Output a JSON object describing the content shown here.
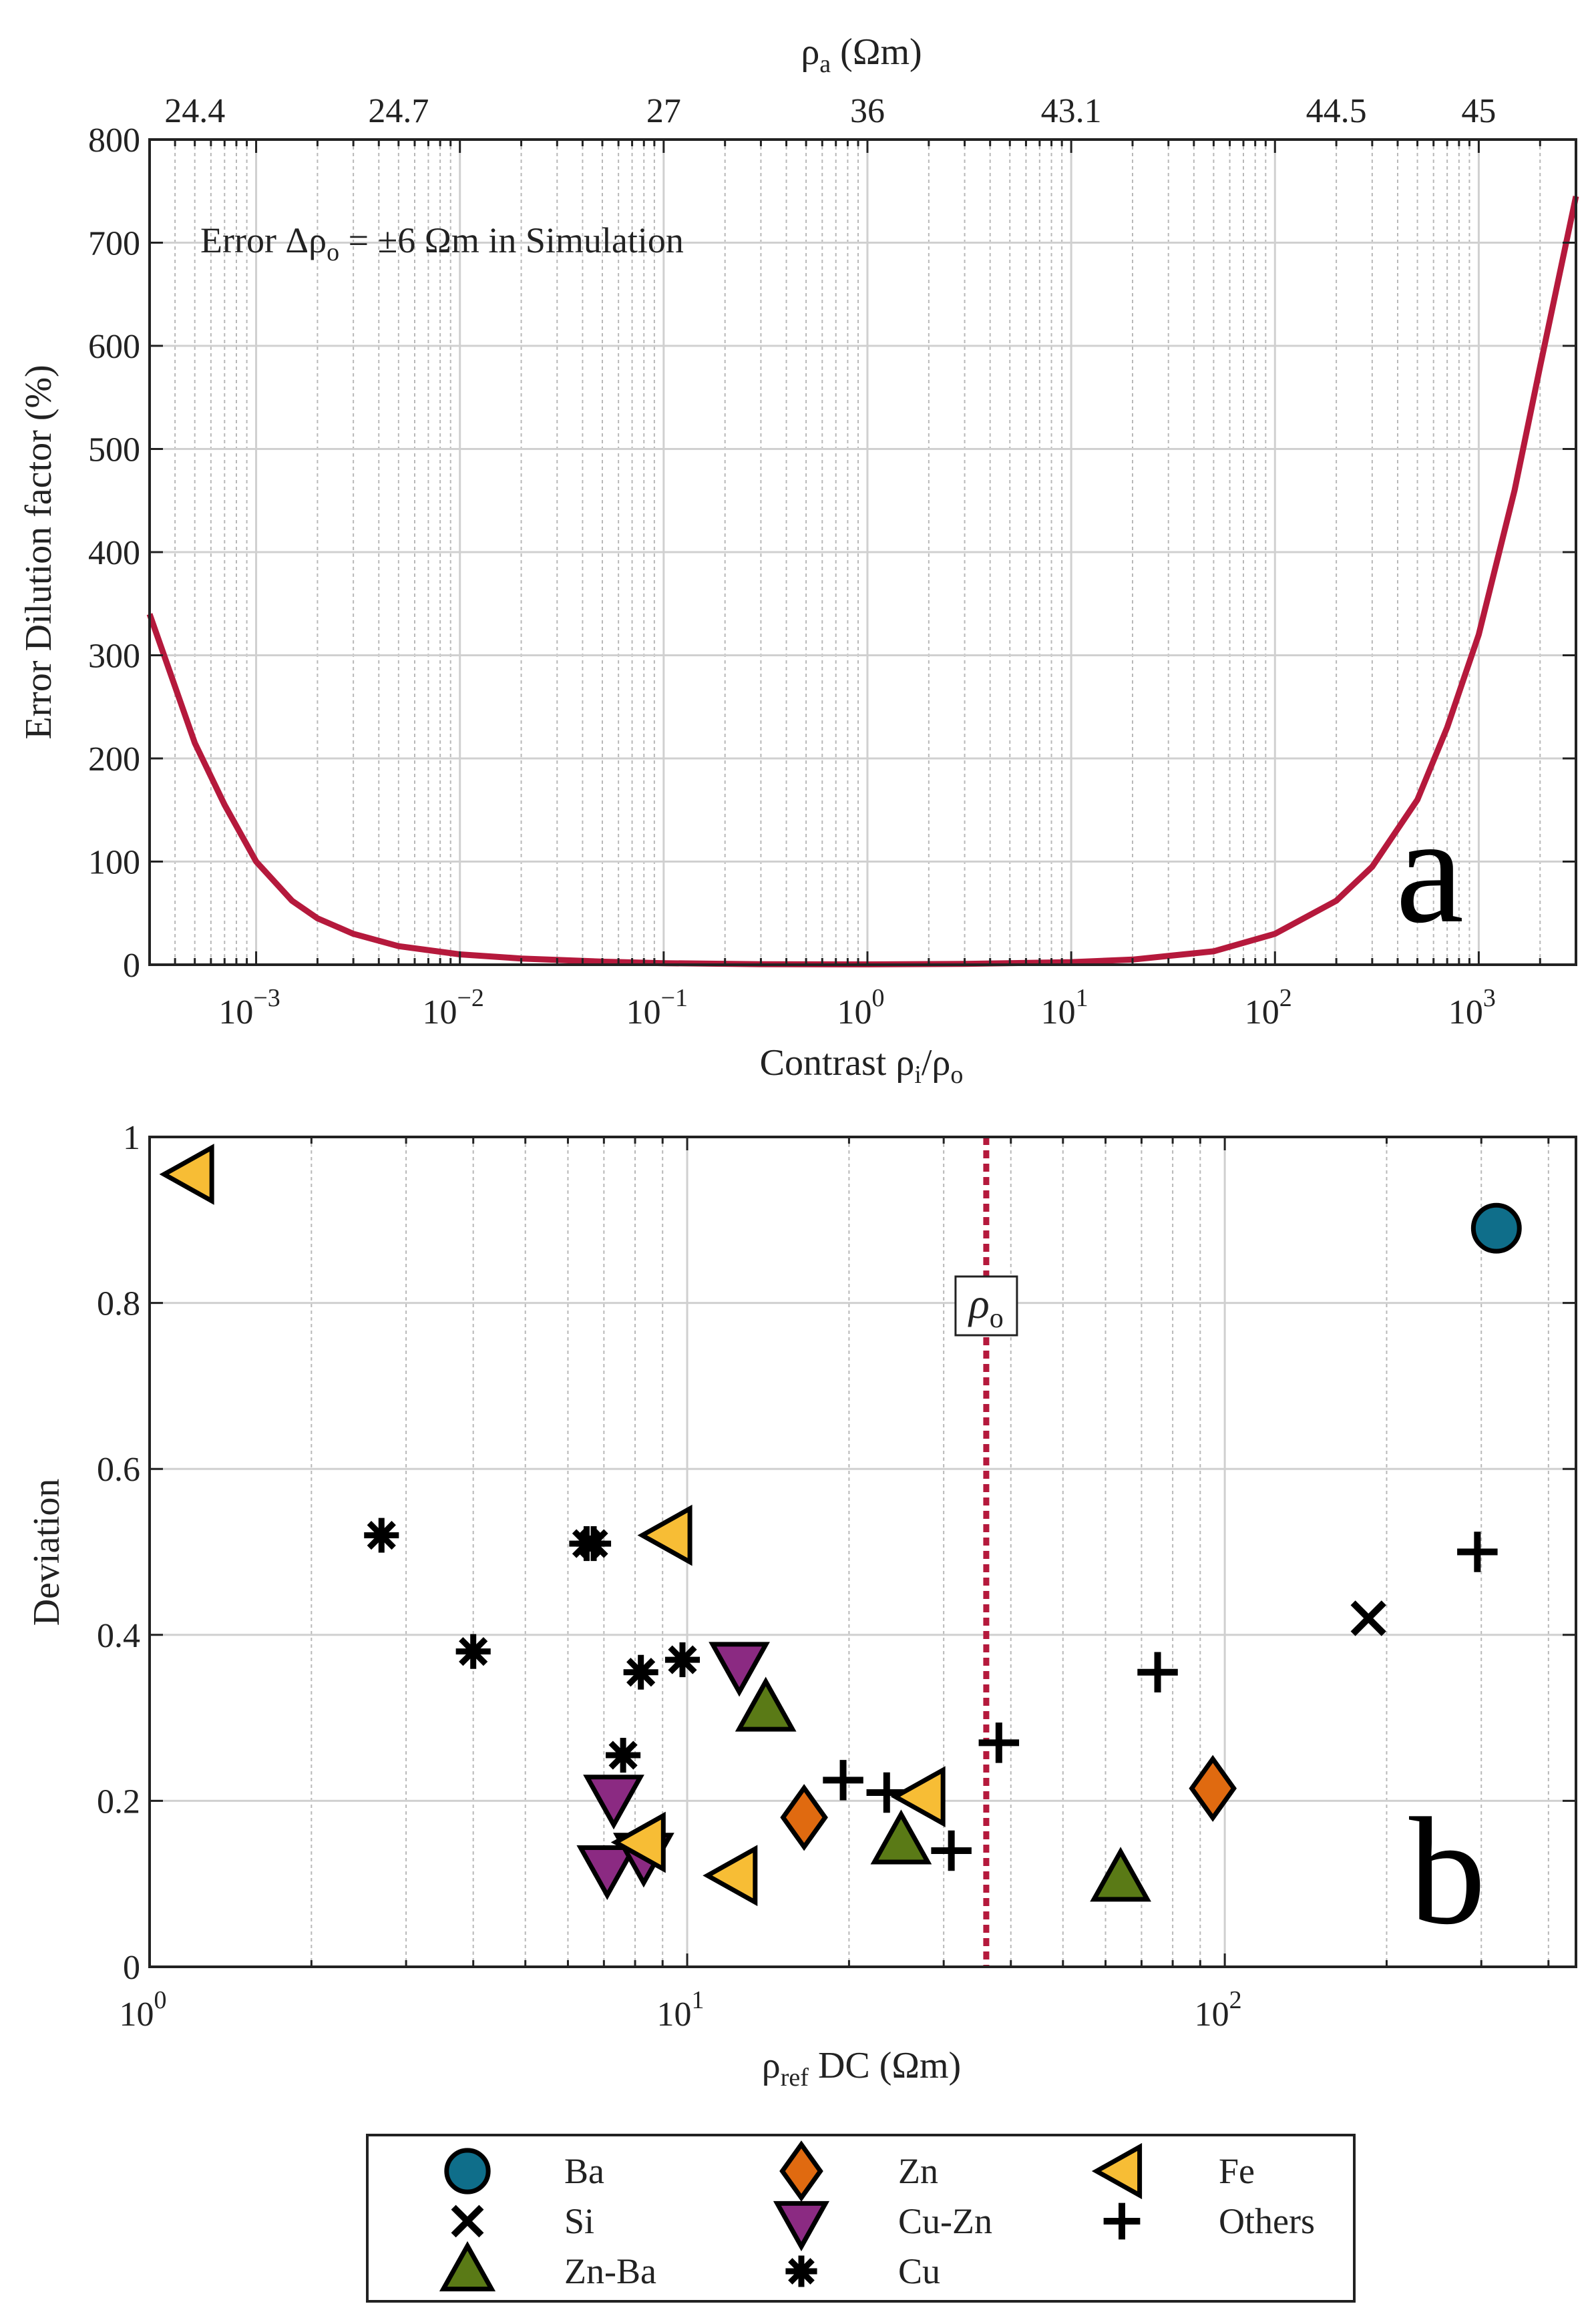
{
  "chart_data": [
    {
      "type": "line",
      "panel_letter": "a",
      "annotation": "Error Δρₒ = ±6 Ωm in Simulation",
      "annotation_parts": {
        "prefix": "Error Δρ",
        "sub": "o",
        "suffix": " = ±6 Ωm in Simulation"
      },
      "xlabel_parts": {
        "prefix": "Contrast ρ",
        "sub1": "i",
        "mid": "/ρ",
        "sub2": "o"
      },
      "ylabel": "Error Dilution factor (%)",
      "top_xlabel_parts": {
        "prefix": "ρ",
        "sub": "a",
        "suffix": " (Ωm)"
      },
      "xscale": "log",
      "xlim": [
        0.0003,
        3000
      ],
      "ylim": [
        0,
        800
      ],
      "yticks": [
        0,
        100,
        200,
        300,
        400,
        500,
        600,
        700,
        800
      ],
      "xticks": [
        {
          "value": 0.001,
          "base": "10",
          "exp": "−3"
        },
        {
          "value": 0.01,
          "base": "10",
          "exp": "−2"
        },
        {
          "value": 0.1,
          "base": "10",
          "exp": "−1"
        },
        {
          "value": 1,
          "base": "10",
          "exp": "0"
        },
        {
          "value": 10,
          "base": "10",
          "exp": "1"
        },
        {
          "value": 100,
          "base": "10",
          "exp": "2"
        },
        {
          "value": 1000,
          "base": "10",
          "exp": "3"
        }
      ],
      "top_ticks": [
        {
          "value": 0.0005,
          "label": "24.4"
        },
        {
          "value": 0.005,
          "label": "24.7"
        },
        {
          "value": 0.1,
          "label": "27"
        },
        {
          "value": 1,
          "label": "36"
        },
        {
          "value": 10,
          "label": "43.1"
        },
        {
          "value": 200,
          "label": "44.5"
        },
        {
          "value": 1000,
          "label": "45"
        }
      ],
      "series": [
        {
          "name": "Error dilution",
          "color": "#b5193c",
          "points": [
            [
              0.0003,
              340
            ],
            [
              0.0005,
              215
            ],
            [
              0.0007,
              155
            ],
            [
              0.001,
              100
            ],
            [
              0.0015,
              62
            ],
            [
              0.002,
              45
            ],
            [
              0.003,
              30
            ],
            [
              0.005,
              18
            ],
            [
              0.01,
              10
            ],
            [
              0.02,
              6
            ],
            [
              0.05,
              3
            ],
            [
              0.1,
              1.5
            ],
            [
              0.3,
              0.5
            ],
            [
              1,
              0.3
            ],
            [
              3,
              0.8
            ],
            [
              10,
              2.5
            ],
            [
              20,
              5
            ],
            [
              50,
              13
            ],
            [
              100,
              30
            ],
            [
              200,
              62
            ],
            [
              300,
              95
            ],
            [
              500,
              160
            ],
            [
              700,
              230
            ],
            [
              1000,
              320
            ],
            [
              1500,
              460
            ],
            [
              2000,
              580
            ],
            [
              3000,
              745
            ]
          ]
        }
      ]
    },
    {
      "type": "scatter",
      "panel_letter": "b",
      "ylabel": "Deviation",
      "xlabel_parts": {
        "prefix": "ρ",
        "sub": "ref",
        "suffix": " DC (Ωm)"
      },
      "xscale": "log",
      "xlim": [
        1,
        450
      ],
      "ylim": [
        0,
        1
      ],
      "yticks": [
        {
          "value": 0,
          "label": "0"
        },
        {
          "value": 0.2,
          "label": "0.2"
        },
        {
          "value": 0.4,
          "label": "0.4"
        },
        {
          "value": 0.6,
          "label": "0.6"
        },
        {
          "value": 0.8,
          "label": "0.8"
        },
        {
          "value": 1,
          "label": "1"
        }
      ],
      "xticks": [
        {
          "value": 1,
          "base": "10",
          "exp": "0"
        },
        {
          "value": 10,
          "base": "10",
          "exp": "1"
        },
        {
          "value": 100,
          "base": "10",
          "exp": "2"
        }
      ],
      "reference_line": {
        "x": 36,
        "label": "ρ",
        "label_sub": "o",
        "color": "#b5193c"
      },
      "series": [
        {
          "name": "Ba",
          "marker": "circle",
          "color": "#0f6e8a",
          "points": [
            [
              320,
              0.89
            ]
          ]
        },
        {
          "name": "Si",
          "marker": "x",
          "color": "#000000",
          "points": [
            [
              185,
              0.42
            ]
          ]
        },
        {
          "name": "Zn-Ba",
          "marker": "triangle-up",
          "color": "#5a7a16",
          "points": [
            [
              14,
              0.31
            ],
            [
              25,
              0.15
            ],
            [
              64,
              0.105
            ]
          ]
        },
        {
          "name": "Zn",
          "marker": "diamond",
          "color": "#e06a10",
          "points": [
            [
              16.5,
              0.18
            ],
            [
              95,
              0.215
            ]
          ]
        },
        {
          "name": "Cu-Zn",
          "marker": "triangle-down",
          "color": "#8b2a82",
          "points": [
            [
              12.5,
              0.365
            ],
            [
              7.3,
              0.205
            ],
            [
              7.1,
              0.12
            ],
            [
              8.3,
              0.135
            ]
          ]
        },
        {
          "name": "Cu",
          "marker": "asterisk",
          "color": "#000000",
          "points": [
            [
              2.7,
              0.52
            ],
            [
              4.0,
              0.38
            ],
            [
              6.5,
              0.51
            ],
            [
              6.7,
              0.51
            ],
            [
              8.2,
              0.355
            ],
            [
              9.8,
              0.37
            ],
            [
              7.6,
              0.255
            ]
          ]
        },
        {
          "name": "Fe",
          "marker": "triangle-left",
          "color": "#f7bd35",
          "points": [
            [
              1.2,
              0.955
            ],
            [
              9.3,
              0.52
            ],
            [
              8.3,
              0.15
            ],
            [
              12.3,
              0.11
            ],
            [
              27.5,
              0.205
            ]
          ]
        },
        {
          "name": "Others",
          "marker": "plus",
          "color": "#000000",
          "points": [
            [
              19.5,
              0.225
            ],
            [
              23.5,
              0.21
            ],
            [
              31,
              0.14
            ],
            [
              38,
              0.27
            ],
            [
              75,
              0.355
            ],
            [
              295,
              0.5
            ]
          ]
        }
      ]
    }
  ],
  "legend": {
    "entries": [
      "Ba",
      "Zn",
      "Fe",
      "Si",
      "Cu-Zn",
      "Others",
      "Zn-Ba",
      "Cu"
    ]
  }
}
